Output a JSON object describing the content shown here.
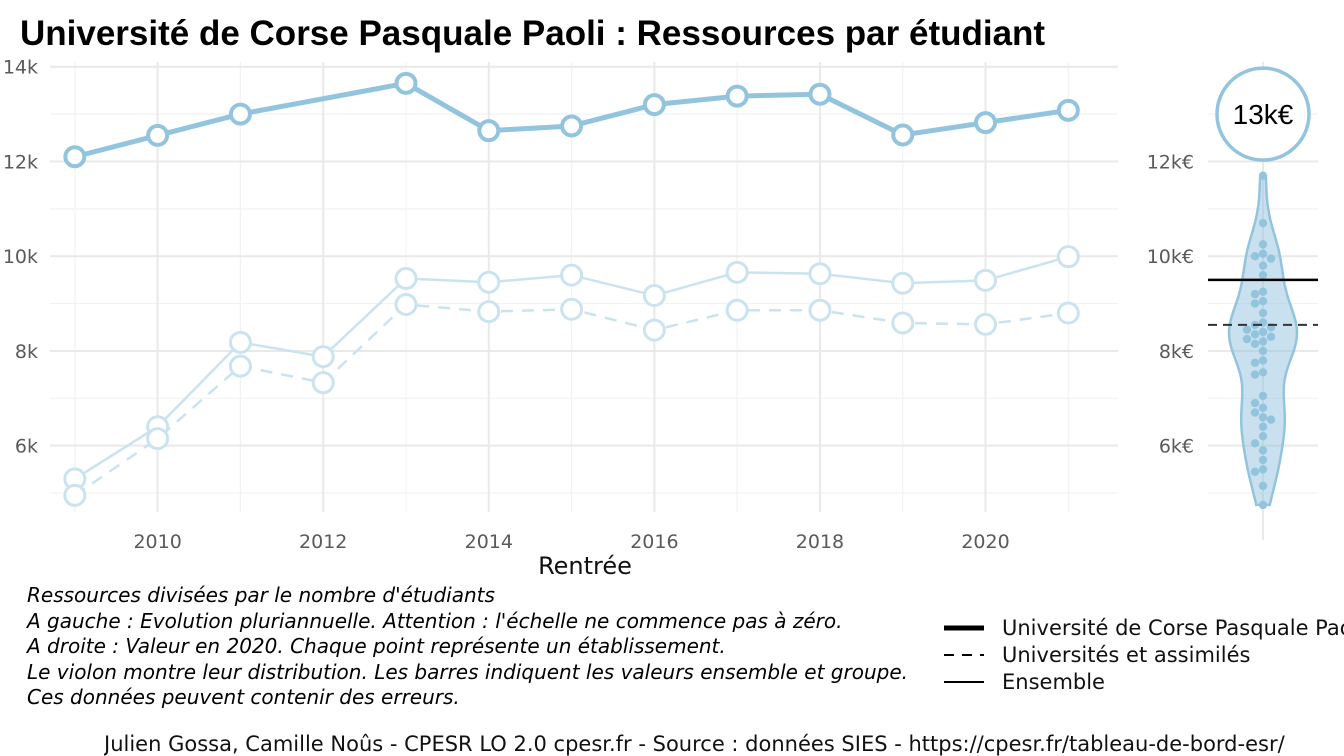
{
  "chart_data": [
    {
      "type": "line",
      "title": "Université de Corse Pasquale Paoli  :  Ressources par étudiant",
      "xlabel": "Rentrée",
      "ylabel": "",
      "xlim": [
        2008.7,
        2021.6
      ],
      "ylim": [
        4600,
        14100
      ],
      "x_ticks": [
        2010,
        2012,
        2014,
        2016,
        2018,
        2020
      ],
      "x_tick_labels": [
        "2010",
        "2012",
        "2014",
        "2016",
        "2018",
        "2020"
      ],
      "y_ticks": [
        6000,
        8000,
        10000,
        12000,
        14000
      ],
      "y_tick_labels": [
        "6k",
        "8k",
        "10k",
        "12k",
        "14k"
      ],
      "grid": true,
      "x": [
        2009,
        2010,
        2011,
        2012,
        2013,
        2014,
        2015,
        2016,
        2017,
        2018,
        2019,
        2020,
        2021
      ],
      "series": [
        {
          "name": "Université de Corse Pasquale Paoli",
          "color": "#93c4de",
          "style": "solid-thick",
          "values": [
            12100,
            12550,
            13000,
            null,
            13650,
            12650,
            12750,
            13200,
            13380,
            13420,
            12560,
            12820,
            13080
          ]
        },
        {
          "name": "Ensemble",
          "color": "#cae3ef",
          "style": "solid",
          "values": [
            5300,
            6400,
            8180,
            7880,
            9530,
            9450,
            9600,
            9170,
            9660,
            9630,
            9430,
            9490,
            9990
          ]
        },
        {
          "name": "Universités et assimilés",
          "color": "#cae3ef",
          "style": "dashed",
          "values": [
            4950,
            6150,
            7680,
            7330,
            8980,
            8830,
            8880,
            8440,
            8860,
            8860,
            8590,
            8560,
            8800
          ]
        }
      ]
    },
    {
      "type": "scatter",
      "title": "",
      "ylim": [
        4600,
        14100
      ],
      "y_ticks": [
        6000,
        8000,
        10000,
        12000
      ],
      "y_tick_labels": [
        "6k€",
        "8k€",
        "10k€",
        "12k€"
      ],
      "grid": true,
      "highlight_value": 13000,
      "highlight_label": "13k€",
      "ensemble_value": 9500,
      "groupe_value": 8550,
      "violin_color": "#93c4de",
      "point_color": "#93c4de",
      "points": [
        11700,
        10700,
        10250,
        10050,
        10000,
        9950,
        9800,
        9600,
        9250,
        9200,
        9050,
        9000,
        8800,
        8600,
        8550,
        8500,
        8450,
        8400,
        8350,
        8300,
        8250,
        8200,
        8150,
        8000,
        7800,
        7750,
        7550,
        7500,
        7050,
        6900,
        6800,
        6700,
        6600,
        6550,
        6400,
        6200,
        6050,
        5900,
        5700,
        5500,
        5450,
        5150,
        4750
      ]
    }
  ],
  "notes": [
    "Ressources divisées par le nombre d'étudiants",
    "A gauche : Evolution pluriannuelle. Attention : l'échelle ne commence pas à zéro.",
    "A droite : Valeur en 2020. Chaque point représente un établissement.",
    "Le violon montre leur distribution. Les barres indiquent les valeurs ensemble et groupe.",
    "Ces données peuvent contenir des erreurs."
  ],
  "legend": [
    {
      "label": "Université de Corse Pasquale Paoli",
      "style": "solid-thick"
    },
    {
      "label": "Universités et assimilés",
      "style": "dashed"
    },
    {
      "label": "Ensemble",
      "style": "solid"
    }
  ],
  "credit": "Julien Gossa, Camille Noûs - CPESR LO 2.0 cpesr.fr - Source : données SIES - https://cpesr.fr/tableau-de-bord-esr/"
}
